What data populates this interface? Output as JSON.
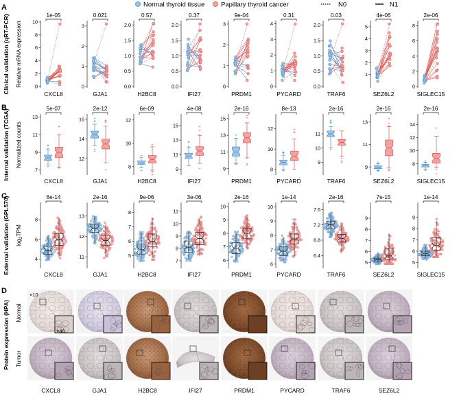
{
  "colors": {
    "normal": "#4f8fc9",
    "tumor": "#e1504f",
    "normal_fill": "#9cc2e5",
    "tumor_fill": "#f2a2a0"
  },
  "legend": {
    "normal": "Normal thyroid tissue",
    "tumor": "Papillary thyroid cancer",
    "n0": "N0",
    "n1": "N1"
  },
  "genes": [
    "CXCL8",
    "GJA1",
    "H2BC8",
    "IFI27",
    "PRDM1",
    "PYCARD",
    "TRAF6",
    "SEZ6L2",
    "SIGLEC15"
  ],
  "panels": {
    "A": {
      "letter": "A",
      "row_title": "Clinical validation (qRT-PCR)",
      "ylabel": "Relative mRNA expression"
    },
    "B": {
      "letter": "B",
      "row_title": "Internal validation (TCGA)",
      "ylabel": "Normalized counts"
    },
    "C": {
      "letter": "C",
      "row_title": "External validation (GPL570)",
      "ylabel_main": "log",
      "ylabel_sub": "2",
      "ylabel_end": "TPM"
    },
    "D": {
      "letter": "D",
      "row_title": "Protein expression (HPA)",
      "row_normal": "Normal",
      "row_tumor": "Tumor",
      "mag_low": "×10",
      "mag_high": "×40",
      "genes": [
        "CXCL8",
        "GJA1",
        "H2BC8",
        "IFI27",
        "PRDM1",
        "PYCARD",
        "TRAF6",
        "SEZ6L2"
      ]
    }
  },
  "chart_data": [
    {
      "panel": "A",
      "type": "scatter",
      "title": "Clinical validation (qRT-PCR)",
      "ylabel": "Relative mRNA expression",
      "categories": [
        "Normal thyroid tissue",
        "Papillary thyroid cancer"
      ],
      "plots": [
        {
          "gene": "CXCL8",
          "p": "1e-05",
          "ylim": [
            0,
            10
          ],
          "yticks": [
            0,
            2,
            4,
            6,
            8,
            10
          ],
          "normal_median": 0.9,
          "tumor_median": 2.2
        },
        {
          "gene": "GJA1",
          "p": "0.021",
          "ylim": [
            0,
            3.2
          ],
          "yticks": [
            0,
            1,
            2,
            3
          ],
          "normal_median": 1.0,
          "tumor_median": 0.8
        },
        {
          "gene": "H2BC8",
          "p": "0.57",
          "ylim": [
            0,
            2.1
          ],
          "yticks": [
            0.0,
            0.5,
            1.0,
            1.5,
            2.0
          ],
          "normal_median": 1.0,
          "tumor_median": 1.1
        },
        {
          "gene": "IFI27",
          "p": "0.37",
          "ylim": [
            0,
            2.1
          ],
          "yticks": [
            0.0,
            0.5,
            1.0,
            1.5,
            2.0
          ],
          "normal_median": 1.0,
          "tumor_median": 1.1
        },
        {
          "gene": "PRDM1",
          "p": "9e-04",
          "ylim": [
            0,
            3.1
          ],
          "yticks": [
            0,
            1,
            2,
            3
          ],
          "normal_median": 1.0,
          "tumor_median": 1.5
        },
        {
          "gene": "PYCARD",
          "p": "0.31",
          "ylim": [
            0,
            4.1
          ],
          "yticks": [
            0,
            1,
            2,
            3,
            4
          ],
          "normal_median": 1.0,
          "tumor_median": 1.4
        },
        {
          "gene": "TRAF6",
          "p": "0.03",
          "ylim": [
            0,
            2.1
          ],
          "yticks": [
            0.0,
            0.5,
            1.0,
            1.5,
            2.0
          ],
          "normal_median": 1.0,
          "tumor_median": 0.7
        },
        {
          "gene": "SEZ6L2",
          "p": "4e-06",
          "ylim": [
            0,
            5.4
          ],
          "yticks": [
            1,
            2,
            3,
            4,
            5
          ],
          "normal_median": 1.0,
          "tumor_median": 2.6
        },
        {
          "gene": "SIGLEC15",
          "p": "2e-06",
          "ylim": [
            0,
            8.5
          ],
          "yticks": [
            0,
            2,
            4,
            6,
            8
          ],
          "normal_median": 1.0,
          "tumor_median": 4.5
        }
      ]
    },
    {
      "panel": "B",
      "type": "box",
      "title": "Internal validation (TCGA)",
      "ylabel": "Normalized counts",
      "categories": [
        "Normal thyroid tissue",
        "Papillary thyroid cancer"
      ],
      "plots": [
        {
          "gene": "CXCL8",
          "p": "5e-07",
          "ylim": [
            6.6,
            13.2
          ],
          "yticks": [
            7,
            9,
            11,
            13
          ],
          "normal": [
            7.6,
            8.1,
            8.4,
            8.7,
            9.3
          ],
          "tumor": [
            7.3,
            8.4,
            9.0,
            9.6,
            11.0
          ]
        },
        {
          "gene": "GJA1",
          "p": "2e-12",
          "ylim": [
            10.5,
            16.4
          ],
          "yticks": [
            12,
            14,
            16
          ],
          "normal": [
            13.3,
            14.1,
            14.5,
            14.8,
            15.5
          ],
          "tumor": [
            11.6,
            13.0,
            13.5,
            14.0,
            15.3
          ]
        },
        {
          "gene": "H2BC8",
          "p": "6e-09",
          "ylim": [
            7.4,
            12.4
          ],
          "yticks": [
            8,
            10,
            12
          ],
          "normal": [
            7.9,
            8.2,
            8.3,
            8.5,
            8.8
          ],
          "tumor": [
            7.7,
            8.3,
            8.6,
            8.95,
            9.7
          ]
        },
        {
          "gene": "IFI27",
          "p": "4e-08",
          "ylim": [
            8.4,
            16.4
          ],
          "yticks": [
            9,
            11,
            13,
            15
          ],
          "normal": [
            9.5,
            10.5,
            10.8,
            11.2,
            12.0
          ],
          "tumor": [
            9.8,
            10.9,
            11.5,
            12.1,
            13.6
          ]
        },
        {
          "gene": "PRDM1",
          "p": "2e-16",
          "ylim": [
            8.4,
            15.4
          ],
          "yticks": [
            9,
            11,
            13,
            15
          ],
          "normal": [
            9.6,
            10.5,
            11.0,
            11.6,
            12.6
          ],
          "tumor": [
            10.3,
            12.1,
            12.7,
            13.3,
            14.5
          ]
        },
        {
          "gene": "PYCARD",
          "p": "8e-13",
          "ylim": [
            7.6,
            13.3
          ],
          "yticks": [
            8,
            10,
            12
          ],
          "normal": [
            8.0,
            8.45,
            8.7,
            8.9,
            9.4
          ],
          "tumor": [
            8.0,
            8.9,
            9.3,
            9.8,
            11.0
          ]
        },
        {
          "gene": "TRAF6",
          "p": "2e-16",
          "ylim": [
            8.2,
            12.3
          ],
          "yticks": [
            9,
            10,
            11
          ],
          "normal": [
            10.0,
            10.8,
            11.0,
            11.2,
            11.5
          ],
          "tumor": [
            9.4,
            10.2,
            10.4,
            10.6,
            11.2
          ]
        },
        {
          "gene": "SEZ6L2",
          "p": "2e-16",
          "ylim": [
            8.4,
            13.6
          ],
          "yticks": [
            9,
            11,
            13
          ],
          "normal": [
            8.7,
            8.85,
            8.95,
            9.1,
            9.3
          ],
          "tumor": [
            8.9,
            10.0,
            10.7,
            11.4,
            12.6
          ]
        },
        {
          "gene": "SIGLEC15",
          "p": "2e-16",
          "ylim": [
            6.5,
            15.4
          ],
          "yticks": [
            8,
            10,
            12,
            14
          ],
          "normal": [
            7.2,
            7.5,
            7.7,
            7.9,
            8.2
          ],
          "tumor": [
            7.4,
            8.1,
            8.8,
            9.6,
            12.2
          ]
        }
      ]
    },
    {
      "panel": "C",
      "type": "violin",
      "title": "External validation (GPL570)",
      "ylabel": "log2TPM",
      "categories": [
        "Normal thyroid tissue",
        "Papillary thyroid cancer"
      ],
      "plots": [
        {
          "gene": "CXCL8",
          "p": "6e-14",
          "ylim": [
            3.2,
            9.6
          ],
          "yticks": [
            4,
            6,
            8
          ],
          "normal": [
            4.0,
            4.5,
            4.9,
            5.3,
            6.4
          ],
          "tumor": [
            4.2,
            5.4,
            6.0,
            6.6,
            8.2
          ]
        },
        {
          "gene": "GJA1",
          "p": "2e-16",
          "ylim": [
            10.5,
            13.6
          ],
          "yticks": [
            11,
            12,
            13
          ],
          "normal": [
            11.7,
            12.2,
            12.4,
            12.6,
            13.0
          ],
          "tumor": [
            11.0,
            11.55,
            11.8,
            12.05,
            12.6
          ]
        },
        {
          "gene": "H2BC8",
          "p": "9e-06",
          "ylim": [
            4.2,
            8.6
          ],
          "yticks": [
            5,
            6,
            7,
            8
          ],
          "normal": [
            4.7,
            5.1,
            5.4,
            5.8,
            6.6
          ],
          "tumor": [
            4.8,
            5.6,
            6.0,
            6.5,
            7.6
          ]
        },
        {
          "gene": "IFI27",
          "p": "3e-06",
          "ylim": [
            6.5,
            11.6
          ],
          "yticks": [
            7,
            8,
            9,
            10,
            11
          ],
          "normal": [
            7.1,
            7.7,
            8.1,
            8.6,
            9.4
          ],
          "tumor": [
            7.4,
            8.3,
            8.8,
            9.3,
            10.4
          ]
        },
        {
          "gene": "PRDM1",
          "p": "2e-16",
          "ylim": [
            5.5,
            10.2
          ],
          "yticks": [
            6,
            7,
            8,
            9,
            10
          ],
          "normal": [
            6.0,
            6.5,
            6.9,
            7.3,
            8.0
          ],
          "tumor": [
            6.8,
            7.6,
            8.0,
            8.4,
            9.2
          ]
        },
        {
          "gene": "PYCARD",
          "p": "1e-14",
          "ylim": [
            5.8,
            10.2
          ],
          "yticks": [
            6,
            7,
            8,
            9,
            10
          ],
          "normal": [
            6.2,
            6.6,
            6.9,
            7.2,
            7.9
          ],
          "tumor": [
            6.6,
            7.4,
            7.75,
            8.1,
            9.0
          ]
        },
        {
          "gene": "TRAF6",
          "p": "2e-16",
          "ylim": [
            6.1,
            7.75
          ],
          "yticks": [
            6.4,
            6.8,
            7.2,
            7.6
          ],
          "normal": [
            6.9,
            7.1,
            7.2,
            7.3,
            7.5
          ],
          "tumor": [
            6.5,
            6.75,
            6.85,
            6.95,
            7.2
          ]
        },
        {
          "gene": "SEZ6L2",
          "p": "7e-15",
          "ylim": [
            4.6,
            10.3
          ],
          "yticks": [
            5,
            6,
            7,
            8,
            9
          ],
          "normal": [
            4.9,
            5.1,
            5.25,
            5.4,
            5.8
          ],
          "tumor": [
            5.0,
            5.3,
            5.6,
            6.3,
            7.6
          ]
        },
        {
          "gene": "SIGLEC15",
          "p": "1e-14",
          "ylim": [
            4.6,
            10.2
          ],
          "yticks": [
            5,
            6,
            7,
            8,
            9
          ],
          "normal": [
            5.3,
            5.6,
            5.8,
            6.0,
            6.5
          ],
          "tumor": [
            5.6,
            6.1,
            6.5,
            7.2,
            8.7
          ]
        }
      ]
    }
  ]
}
